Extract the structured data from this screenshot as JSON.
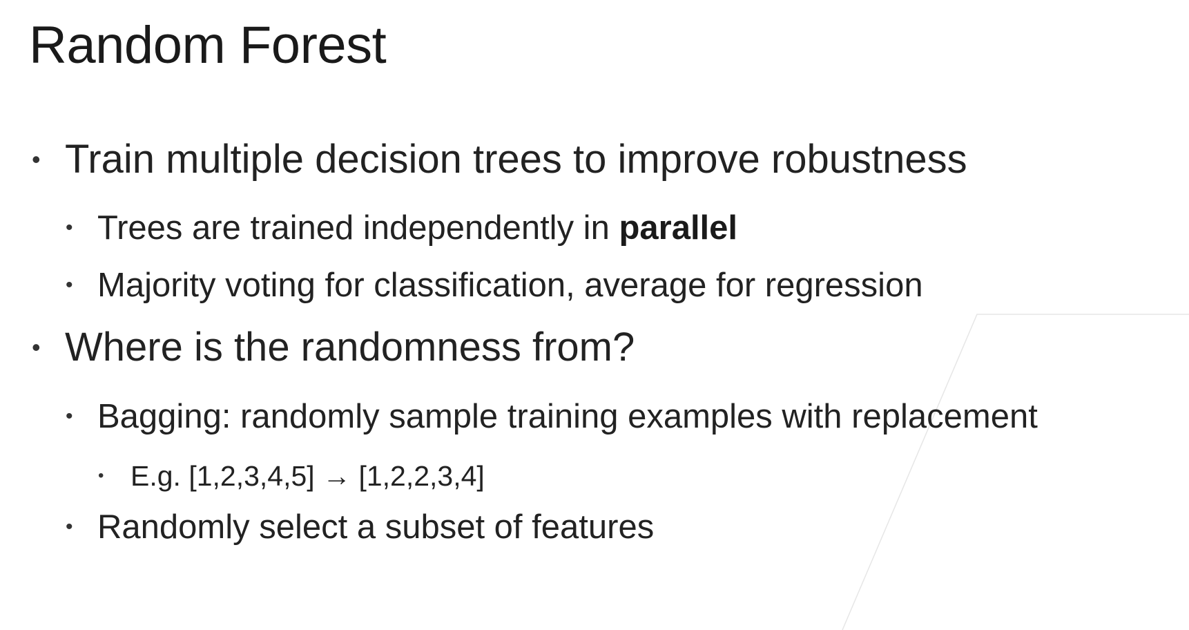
{
  "slide": {
    "title": "Random Forest",
    "bullets": [
      {
        "text": "Train multiple decision trees to improve robustness",
        "children": [
          {
            "text_before": "Trees are trained independently in ",
            "text_bold": "parallel"
          },
          {
            "text": "Majority voting for classification, average for regression"
          }
        ]
      },
      {
        "text": "Where is the randomness from?",
        "children": [
          {
            "text": "Bagging: randomly sample training examples with replacement",
            "children": [
              {
                "text": "E.g. [1,2,3,4,5] → [1,2,2,3,4]"
              }
            ]
          },
          {
            "text": "Randomly select a subset of features"
          }
        ]
      }
    ],
    "bullet_glyph": "•"
  }
}
